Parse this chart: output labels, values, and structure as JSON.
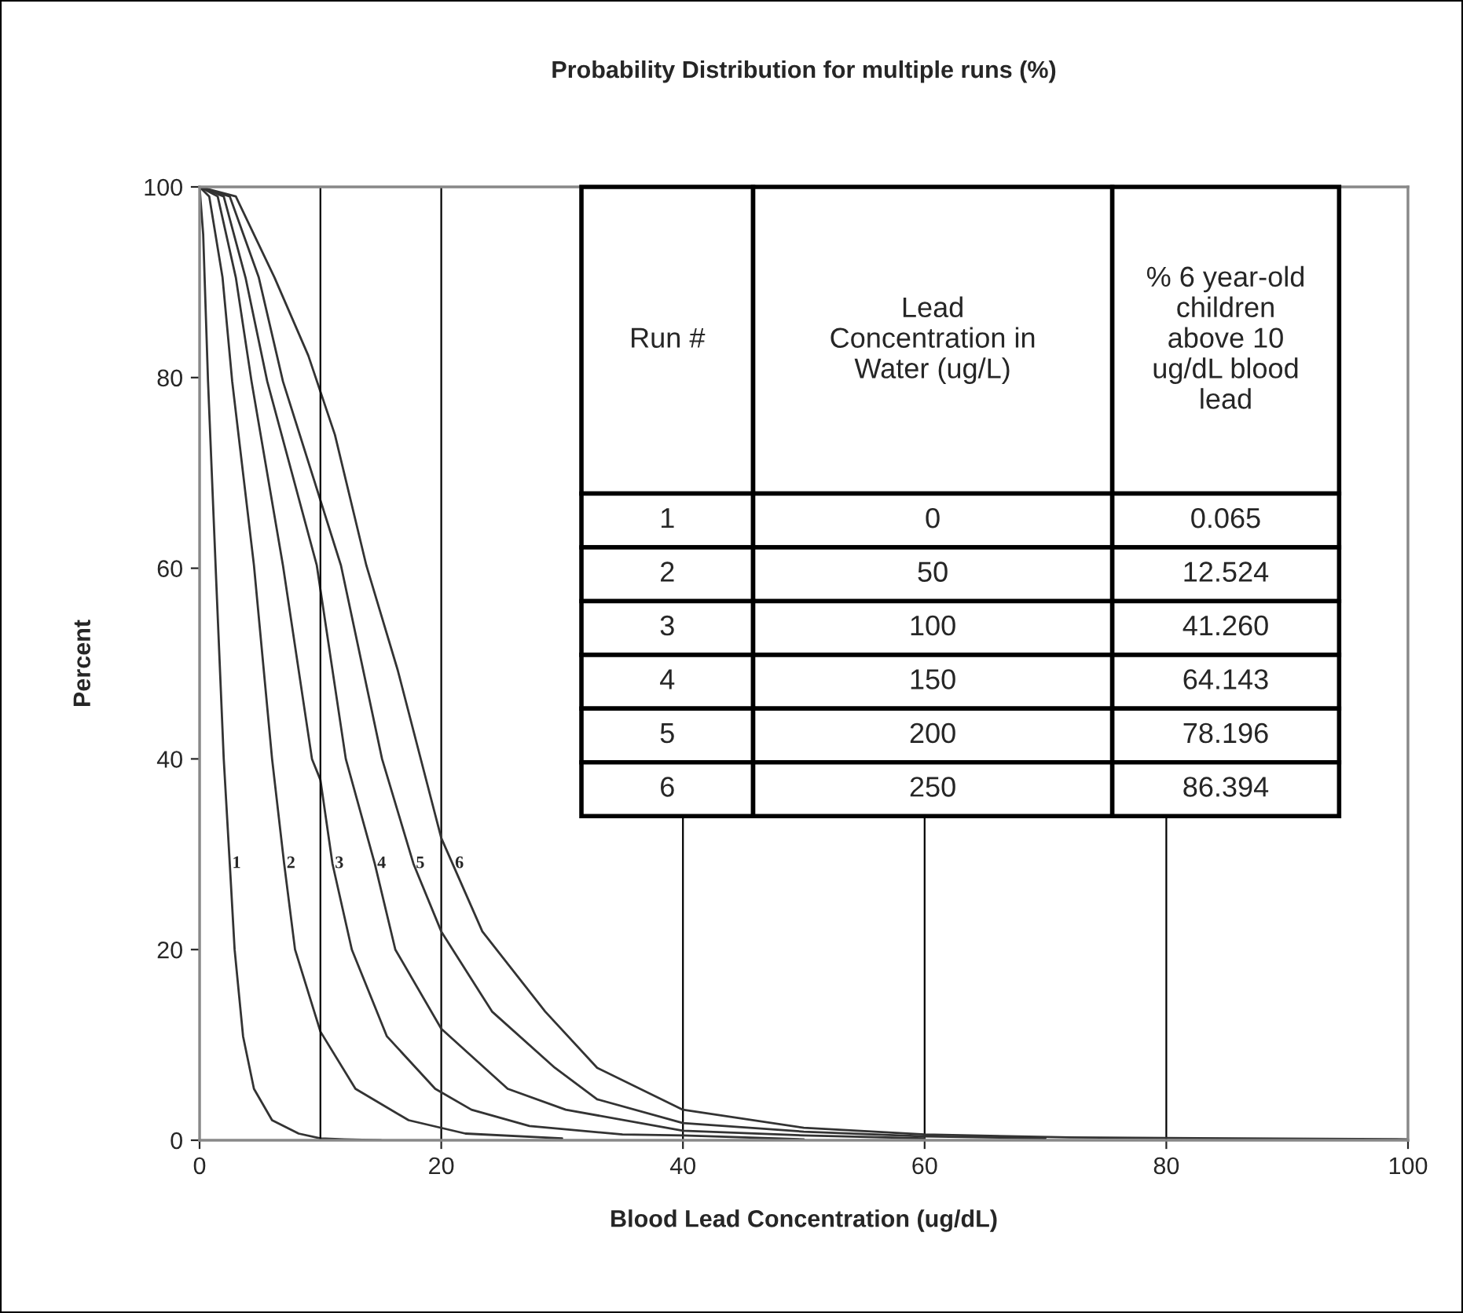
{
  "chart_data": {
    "type": "line",
    "title": "Probability Distribution for multiple runs (%)",
    "xlabel": "Blood Lead Concentration (ug/dL)",
    "ylabel": "Percent",
    "xlim": [
      0,
      100
    ],
    "ylim": [
      0,
      100
    ],
    "xticks": [
      0,
      20,
      40,
      60,
      80,
      100
    ],
    "yticks": [
      0,
      20,
      40,
      60,
      80,
      100
    ],
    "grid": "x",
    "ref_lines": [
      {
        "axis": "x",
        "value": 10,
        "label": null,
        "color": "#000000"
      }
    ],
    "series": [
      {
        "name": "1",
        "color": "#333333",
        "x": [
          0,
          0.3,
          0.7,
          1.4,
          2.0,
          2.5,
          2.9,
          3.6,
          4.5,
          6.0,
          8.2,
          10,
          12,
          15
        ],
        "values": [
          100,
          95,
          79.6,
          58,
          40,
          29,
          20,
          10.9,
          5.4,
          2.1,
          0.7,
          0.2,
          0.1,
          0
        ]
      },
      {
        "name": "2",
        "color": "#333333",
        "x": [
          0,
          0.8,
          1.9,
          2.7,
          4.5,
          6.0,
          7.0,
          7.9,
          10.0,
          12.9,
          17.3,
          22,
          30
        ],
        "values": [
          100,
          99,
          90.5,
          79.6,
          60.3,
          40,
          29,
          20,
          11.4,
          5.4,
          2.1,
          0.7,
          0.2
        ]
      },
      {
        "name": "3",
        "color": "#333333",
        "x": [
          0,
          1.5,
          3.0,
          4.3,
          6.9,
          9.3,
          10,
          11.0,
          12.6,
          15.5,
          19.5,
          22.5,
          27.3,
          35,
          40,
          50
        ],
        "values": [
          100,
          99,
          90.5,
          79.6,
          60.3,
          40,
          37.8,
          29,
          20,
          10.9,
          5.4,
          3.2,
          1.5,
          0.6,
          0.5,
          0.1
        ]
      },
      {
        "name": "4",
        "color": "#333333",
        "x": [
          0,
          2.0,
          3.8,
          5.6,
          9.7,
          12.1,
          14.5,
          16.2,
          20,
          25.5,
          30.3,
          40,
          50,
          60
        ],
        "values": [
          100,
          99,
          90.5,
          79.6,
          60.3,
          40,
          29,
          20,
          11.7,
          5.4,
          3.2,
          1.0,
          0.5,
          0.2
        ]
      },
      {
        "name": "5",
        "color": "#333333",
        "x": [
          0,
          2.5,
          4.9,
          6.9,
          11.7,
          15.1,
          17.7,
          20,
          24.2,
          29.4,
          32.9,
          40,
          50,
          60,
          70
        ],
        "values": [
          100,
          99,
          90.5,
          79.6,
          60.3,
          40,
          29,
          21.9,
          13.5,
          7.6,
          4.3,
          1.8,
          0.9,
          0.4,
          0.2
        ]
      },
      {
        "name": "6",
        "color": "#333333",
        "x": [
          0,
          3.0,
          6.2,
          9.0,
          11.2,
          13.8,
          16.4,
          20,
          23.4,
          28.6,
          32.9,
          40,
          50,
          60,
          72,
          100
        ],
        "values": [
          100,
          99,
          90.5,
          82.3,
          74,
          60.3,
          49.3,
          31.7,
          21.9,
          13.5,
          7.6,
          3.2,
          1.3,
          0.6,
          0.3,
          0.1
        ]
      }
    ],
    "annotations": [
      "Run #",
      "Lead\nConcentration in\nWater (ug/L)",
      "% 6 year-old\nchildren\nabove 10\nug/dL blood\nlead",
      "1",
      "0",
      "0.065",
      "2",
      "50",
      "12.524",
      "3",
      "100",
      "41.260",
      "4",
      "150",
      "64.143",
      "5",
      "200",
      "78.196",
      "6",
      "250",
      "86.394"
    ]
  }
}
